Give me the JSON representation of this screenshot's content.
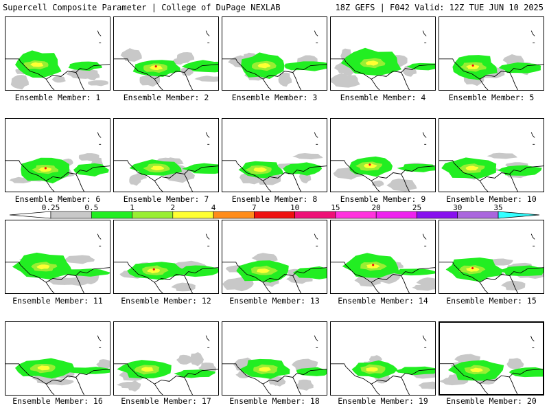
{
  "header": {
    "left": "Supercell Composite Parameter | College of DuPage NEXLAB",
    "right": "18Z GEFS | F042 Valid: 12Z TUE JUN 10 2025"
  },
  "member_label_prefix": "Ensemble Member: ",
  "members": [
    {
      "id": 1,
      "caption": "Ensemble Member: 1",
      "selected": false
    },
    {
      "id": 2,
      "caption": "Ensemble Member: 2",
      "selected": false
    },
    {
      "id": 3,
      "caption": "Ensemble Member: 3",
      "selected": false
    },
    {
      "id": 4,
      "caption": "Ensemble Member: 4",
      "selected": false
    },
    {
      "id": 5,
      "caption": "Ensemble Member: 5",
      "selected": false
    },
    {
      "id": 6,
      "caption": "Ensemble Member: 6",
      "selected": false
    },
    {
      "id": 7,
      "caption": "Ensemble Member: 7",
      "selected": false
    },
    {
      "id": 8,
      "caption": "Ensemble Member: 8",
      "selected": false
    },
    {
      "id": 9,
      "caption": "Ensemble Member: 9",
      "selected": false
    },
    {
      "id": 10,
      "caption": "Ensemble Member: 10",
      "selected": false
    },
    {
      "id": 11,
      "caption": "Ensemble Member: 11",
      "selected": false
    },
    {
      "id": 12,
      "caption": "Ensemble Member: 12",
      "selected": false
    },
    {
      "id": 13,
      "caption": "Ensemble Member: 13",
      "selected": false
    },
    {
      "id": 14,
      "caption": "Ensemble Member: 14",
      "selected": false
    },
    {
      "id": 15,
      "caption": "Ensemble Member: 15",
      "selected": false
    },
    {
      "id": 16,
      "caption": "Ensemble Member: 16",
      "selected": false
    },
    {
      "id": 17,
      "caption": "Ensemble Member: 17",
      "selected": false
    },
    {
      "id": 18,
      "caption": "Ensemble Member: 18",
      "selected": false
    },
    {
      "id": 19,
      "caption": "Ensemble Member: 19",
      "selected": false
    },
    {
      "id": 20,
      "caption": "Ensemble Member: 20",
      "selected": true
    }
  ],
  "colorbar": {
    "ticks": [
      "0.25",
      "0.5",
      "1",
      "2",
      "4",
      "7",
      "10",
      "15",
      "20",
      "25",
      "30",
      "35"
    ],
    "colors": [
      "#c8c8c8",
      "#22ee22",
      "#99ee33",
      "#ffff33",
      "#ff8c1a",
      "#ee1111",
      "#ee1177",
      "#ff33dd",
      "#ee22ee",
      "#8811ee",
      "#aa66dd",
      "#33ffff"
    ]
  },
  "map_colors": {
    "gray": "#c8c8c8",
    "green": "#22ee22",
    "lightgreen": "#99ee33",
    "yellow": "#ffff33",
    "red": "#ee1111",
    "outline": "#000000"
  }
}
